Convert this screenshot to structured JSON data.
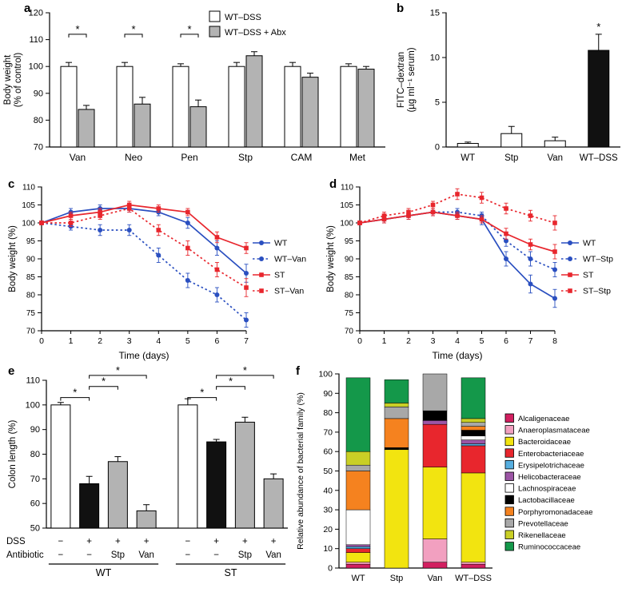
{
  "panels": {
    "a": {
      "label": "a"
    },
    "b": {
      "label": "b"
    },
    "c": {
      "label": "c"
    },
    "d": {
      "label": "d"
    },
    "e": {
      "label": "e"
    },
    "f": {
      "label": "f"
    }
  },
  "chart_data": [
    {
      "panel": "a",
      "type": "bar",
      "ylabel": "Body weight (% of control)",
      "ylabel_lines": [
        "Body weight",
        "(% of control)"
      ],
      "ylim": [
        70,
        120
      ],
      "yticks": [
        70,
        80,
        90,
        100,
        110,
        120
      ],
      "categories": [
        "Van",
        "Neo",
        "Pen",
        "Stp",
        "CAM",
        "Met"
      ],
      "series": [
        {
          "name": "WT–DSS",
          "color": "#ffffff",
          "values": [
            100,
            100,
            100,
            100,
            100,
            100
          ],
          "errors": [
            1.5,
            1.5,
            1,
            1.5,
            1.5,
            1
          ]
        },
        {
          "name": "WT–DSS + Abx",
          "color": "#b3b3b3",
          "values": [
            84,
            86,
            85,
            104,
            96,
            99
          ],
          "errors": [
            1.5,
            2.5,
            2.5,
            1.5,
            1.5,
            1
          ]
        }
      ],
      "significance": [
        {
          "category_index": 0,
          "label": "*",
          "y": 112
        },
        {
          "category_index": 1,
          "label": "*",
          "y": 112
        },
        {
          "category_index": 2,
          "label": "*",
          "y": 112
        }
      ],
      "legend_position": "top-right"
    },
    {
      "panel": "b",
      "type": "bar",
      "ylabel": "FITC–dextran (µg ml⁻¹ serum)",
      "ylabel_lines": [
        "FITC–dextran",
        "(µg ml⁻¹ serum)"
      ],
      "ylim": [
        0,
        15
      ],
      "yticks": [
        0,
        5,
        10,
        15
      ],
      "categories": [
        "WT",
        "Stp",
        "Van",
        "WT–DSS"
      ],
      "values": [
        0.4,
        1.5,
        0.7,
        10.8
      ],
      "errors": [
        0.15,
        0.8,
        0.4,
        1.8
      ],
      "colors": [
        "#ffffff",
        "#ffffff",
        "#ffffff",
        "#111111"
      ],
      "significance": [
        {
          "category_index": 3,
          "label": "*"
        }
      ]
    },
    {
      "panel": "c",
      "type": "line",
      "xlabel": "Time (days)",
      "ylabel": "Body weight (%)",
      "xlim": [
        0,
        7
      ],
      "ylim": [
        70,
        110
      ],
      "yticks": [
        70,
        75,
        80,
        85,
        90,
        95,
        100,
        105,
        110
      ],
      "x": [
        0,
        1,
        2,
        3,
        4,
        5,
        6,
        7
      ],
      "grid": false,
      "legend_position": "right",
      "series": [
        {
          "name": "WT",
          "color": "#2a4fc0",
          "style": "solid",
          "marker": "circle",
          "values": [
            100,
            103,
            104,
            104,
            103,
            100,
            93,
            86
          ],
          "errors": [
            0.5,
            1,
            1,
            1,
            1,
            1.5,
            2,
            2.5
          ]
        },
        {
          "name": "WT–Van",
          "color": "#2a4fc0",
          "style": "dotted",
          "marker": "circle",
          "values": [
            100,
            99,
            98,
            98,
            91,
            84,
            80,
            73
          ],
          "errors": [
            0.5,
            1,
            1.5,
            1.5,
            2,
            2,
            2,
            2
          ]
        },
        {
          "name": "ST",
          "color": "#e8262d",
          "style": "solid",
          "marker": "square",
          "values": [
            100,
            102,
            103,
            105,
            104,
            103,
            96,
            93
          ],
          "errors": [
            0.5,
            1,
            1,
            1,
            1,
            1,
            1.5,
            1.5
          ]
        },
        {
          "name": "ST–Van",
          "color": "#e8262d",
          "style": "dotted",
          "marker": "square",
          "values": [
            100,
            100,
            102,
            104,
            98,
            93,
            87,
            82
          ],
          "errors": [
            0.5,
            1,
            1,
            1,
            1.5,
            2,
            2,
            2.5
          ]
        }
      ]
    },
    {
      "panel": "d",
      "type": "line",
      "xlabel": "Time (days)",
      "ylabel": "Body weight (%)",
      "xlim": [
        0,
        8
      ],
      "ylim": [
        70,
        110
      ],
      "yticks": [
        70,
        75,
        80,
        85,
        90,
        95,
        100,
        105,
        110
      ],
      "x": [
        0,
        1,
        2,
        3,
        4,
        5,
        6,
        7,
        8
      ],
      "grid": false,
      "legend_position": "right",
      "series": [
        {
          "name": "WT",
          "color": "#2a4fc0",
          "style": "solid",
          "marker": "circle",
          "values": [
            100,
            101,
            102,
            103,
            102,
            101,
            90,
            83,
            79
          ],
          "errors": [
            0.5,
            1,
            1,
            1,
            1,
            1.5,
            2,
            2.5,
            2.5
          ]
        },
        {
          "name": "WT–Stp",
          "color": "#2a4fc0",
          "style": "dotted",
          "marker": "circle",
          "values": [
            100,
            101,
            102,
            103,
            103,
            102,
            95,
            90,
            87
          ],
          "errors": [
            0.5,
            1,
            1,
            1,
            1,
            1,
            1.5,
            2,
            2
          ]
        },
        {
          "name": "ST",
          "color": "#e8262d",
          "style": "solid",
          "marker": "square",
          "values": [
            100,
            101,
            102,
            103,
            102,
            101,
            97,
            94,
            92
          ],
          "errors": [
            0.5,
            1,
            1,
            1,
            1,
            1,
            1.5,
            1.5,
            2
          ]
        },
        {
          "name": "ST–Stp",
          "color": "#e8262d",
          "style": "dotted",
          "marker": "square",
          "values": [
            100,
            102,
            103,
            105,
            108,
            107,
            104,
            102,
            100
          ],
          "errors": [
            0.5,
            1,
            1,
            1,
            1.5,
            1.5,
            1.5,
            1.5,
            2
          ]
        }
      ]
    },
    {
      "panel": "e",
      "type": "bar",
      "ylabel": "Colon length (%)",
      "ylim": [
        50,
        110
      ],
      "yticks": [
        50,
        60,
        70,
        80,
        90,
        100,
        110
      ],
      "row_labels": [
        "DSS",
        "Antibiotic"
      ],
      "groups": [
        {
          "name": "WT",
          "from": 0,
          "to": 3
        },
        {
          "name": "ST",
          "from": 4,
          "to": 7
        }
      ],
      "bars": [
        {
          "group": "WT",
          "dss": "−",
          "antibiotic": "−",
          "value": 100,
          "error": 1,
          "color": "#ffffff"
        },
        {
          "group": "WT",
          "dss": "+",
          "antibiotic": "−",
          "value": 68,
          "error": 3,
          "color": "#111111"
        },
        {
          "group": "WT",
          "dss": "+",
          "antibiotic": "Stp",
          "value": 77,
          "error": 2,
          "color": "#b3b3b3"
        },
        {
          "group": "WT",
          "dss": "+",
          "antibiotic": "Van",
          "value": 57,
          "error": 2.5,
          "color": "#b3b3b3"
        },
        {
          "group": "ST",
          "dss": "−",
          "antibiotic": "−",
          "value": 100,
          "error": 2.5,
          "color": "#ffffff"
        },
        {
          "group": "ST",
          "dss": "+",
          "antibiotic": "−",
          "value": 85,
          "error": 1,
          "color": "#111111"
        },
        {
          "group": "ST",
          "dss": "+",
          "antibiotic": "Stp",
          "value": 93,
          "error": 2,
          "color": "#b3b3b3"
        },
        {
          "group": "ST",
          "dss": "+",
          "antibiotic": "Van",
          "value": 70,
          "error": 2,
          "color": "#b3b3b3"
        }
      ],
      "significance": [
        {
          "from": 0,
          "to": 1,
          "y": 103,
          "label": "*"
        },
        {
          "from": 1,
          "to": 2,
          "y": 107.5,
          "label": "*"
        },
        {
          "from": 1,
          "to": 3,
          "y": 112,
          "label": "*"
        },
        {
          "from": 4,
          "to": 5,
          "y": 103,
          "label": "*"
        },
        {
          "from": 5,
          "to": 6,
          "y": 107.5,
          "label": "*"
        },
        {
          "from": 5,
          "to": 7,
          "y": 112,
          "label": "*"
        }
      ]
    },
    {
      "panel": "f",
      "type": "stacked_bar",
      "ylabel": "Relative abundance of bacterial family (%)",
      "ylim": [
        0,
        100
      ],
      "yticks": [
        0,
        10,
        20,
        30,
        40,
        50,
        60,
        70,
        80,
        90,
        100
      ],
      "categories": [
        "WT",
        "Stp",
        "Van",
        "WT–DSS"
      ],
      "legend_position": "right",
      "families": [
        {
          "name": "Alcaligenaceae",
          "color": "#d21f60"
        },
        {
          "name": "Anaeroplasmataceae",
          "color": "#f2a0c0"
        },
        {
          "name": "Bacteroidaceae",
          "color": "#f2e410"
        },
        {
          "name": "Enterobacteriaceae",
          "color": "#e8262d"
        },
        {
          "name": "Erysipelotrichaceae",
          "color": "#56aee0"
        },
        {
          "name": "Helicobacteraceae",
          "color": "#9c55a5"
        },
        {
          "name": "Lachnospiraceae",
          "color": "#ffffff"
        },
        {
          "name": "Lactobacillaceae",
          "color": "#000000"
        },
        {
          "name": "Porphyromonadaceae",
          "color": "#f5821f"
        },
        {
          "name": "Prevotellaceae",
          "color": "#a8a8a8"
        },
        {
          "name": "Rikenellaceae",
          "color": "#c9cf26"
        },
        {
          "name": "Ruminococcaceae",
          "color": "#14984a"
        }
      ],
      "values": [
        [
          2,
          1,
          5,
          2,
          1,
          1,
          18,
          0,
          20,
          3,
          7,
          38
        ],
        [
          0,
          0,
          61,
          0,
          0,
          0,
          0,
          1,
          15,
          6,
          2,
          12
        ],
        [
          3,
          12,
          37,
          22,
          0,
          2,
          0,
          5,
          0,
          19,
          0,
          0
        ],
        [
          2,
          1,
          46,
          14,
          1,
          2,
          2,
          3,
          2,
          2,
          2,
          21
        ]
      ]
    }
  ]
}
